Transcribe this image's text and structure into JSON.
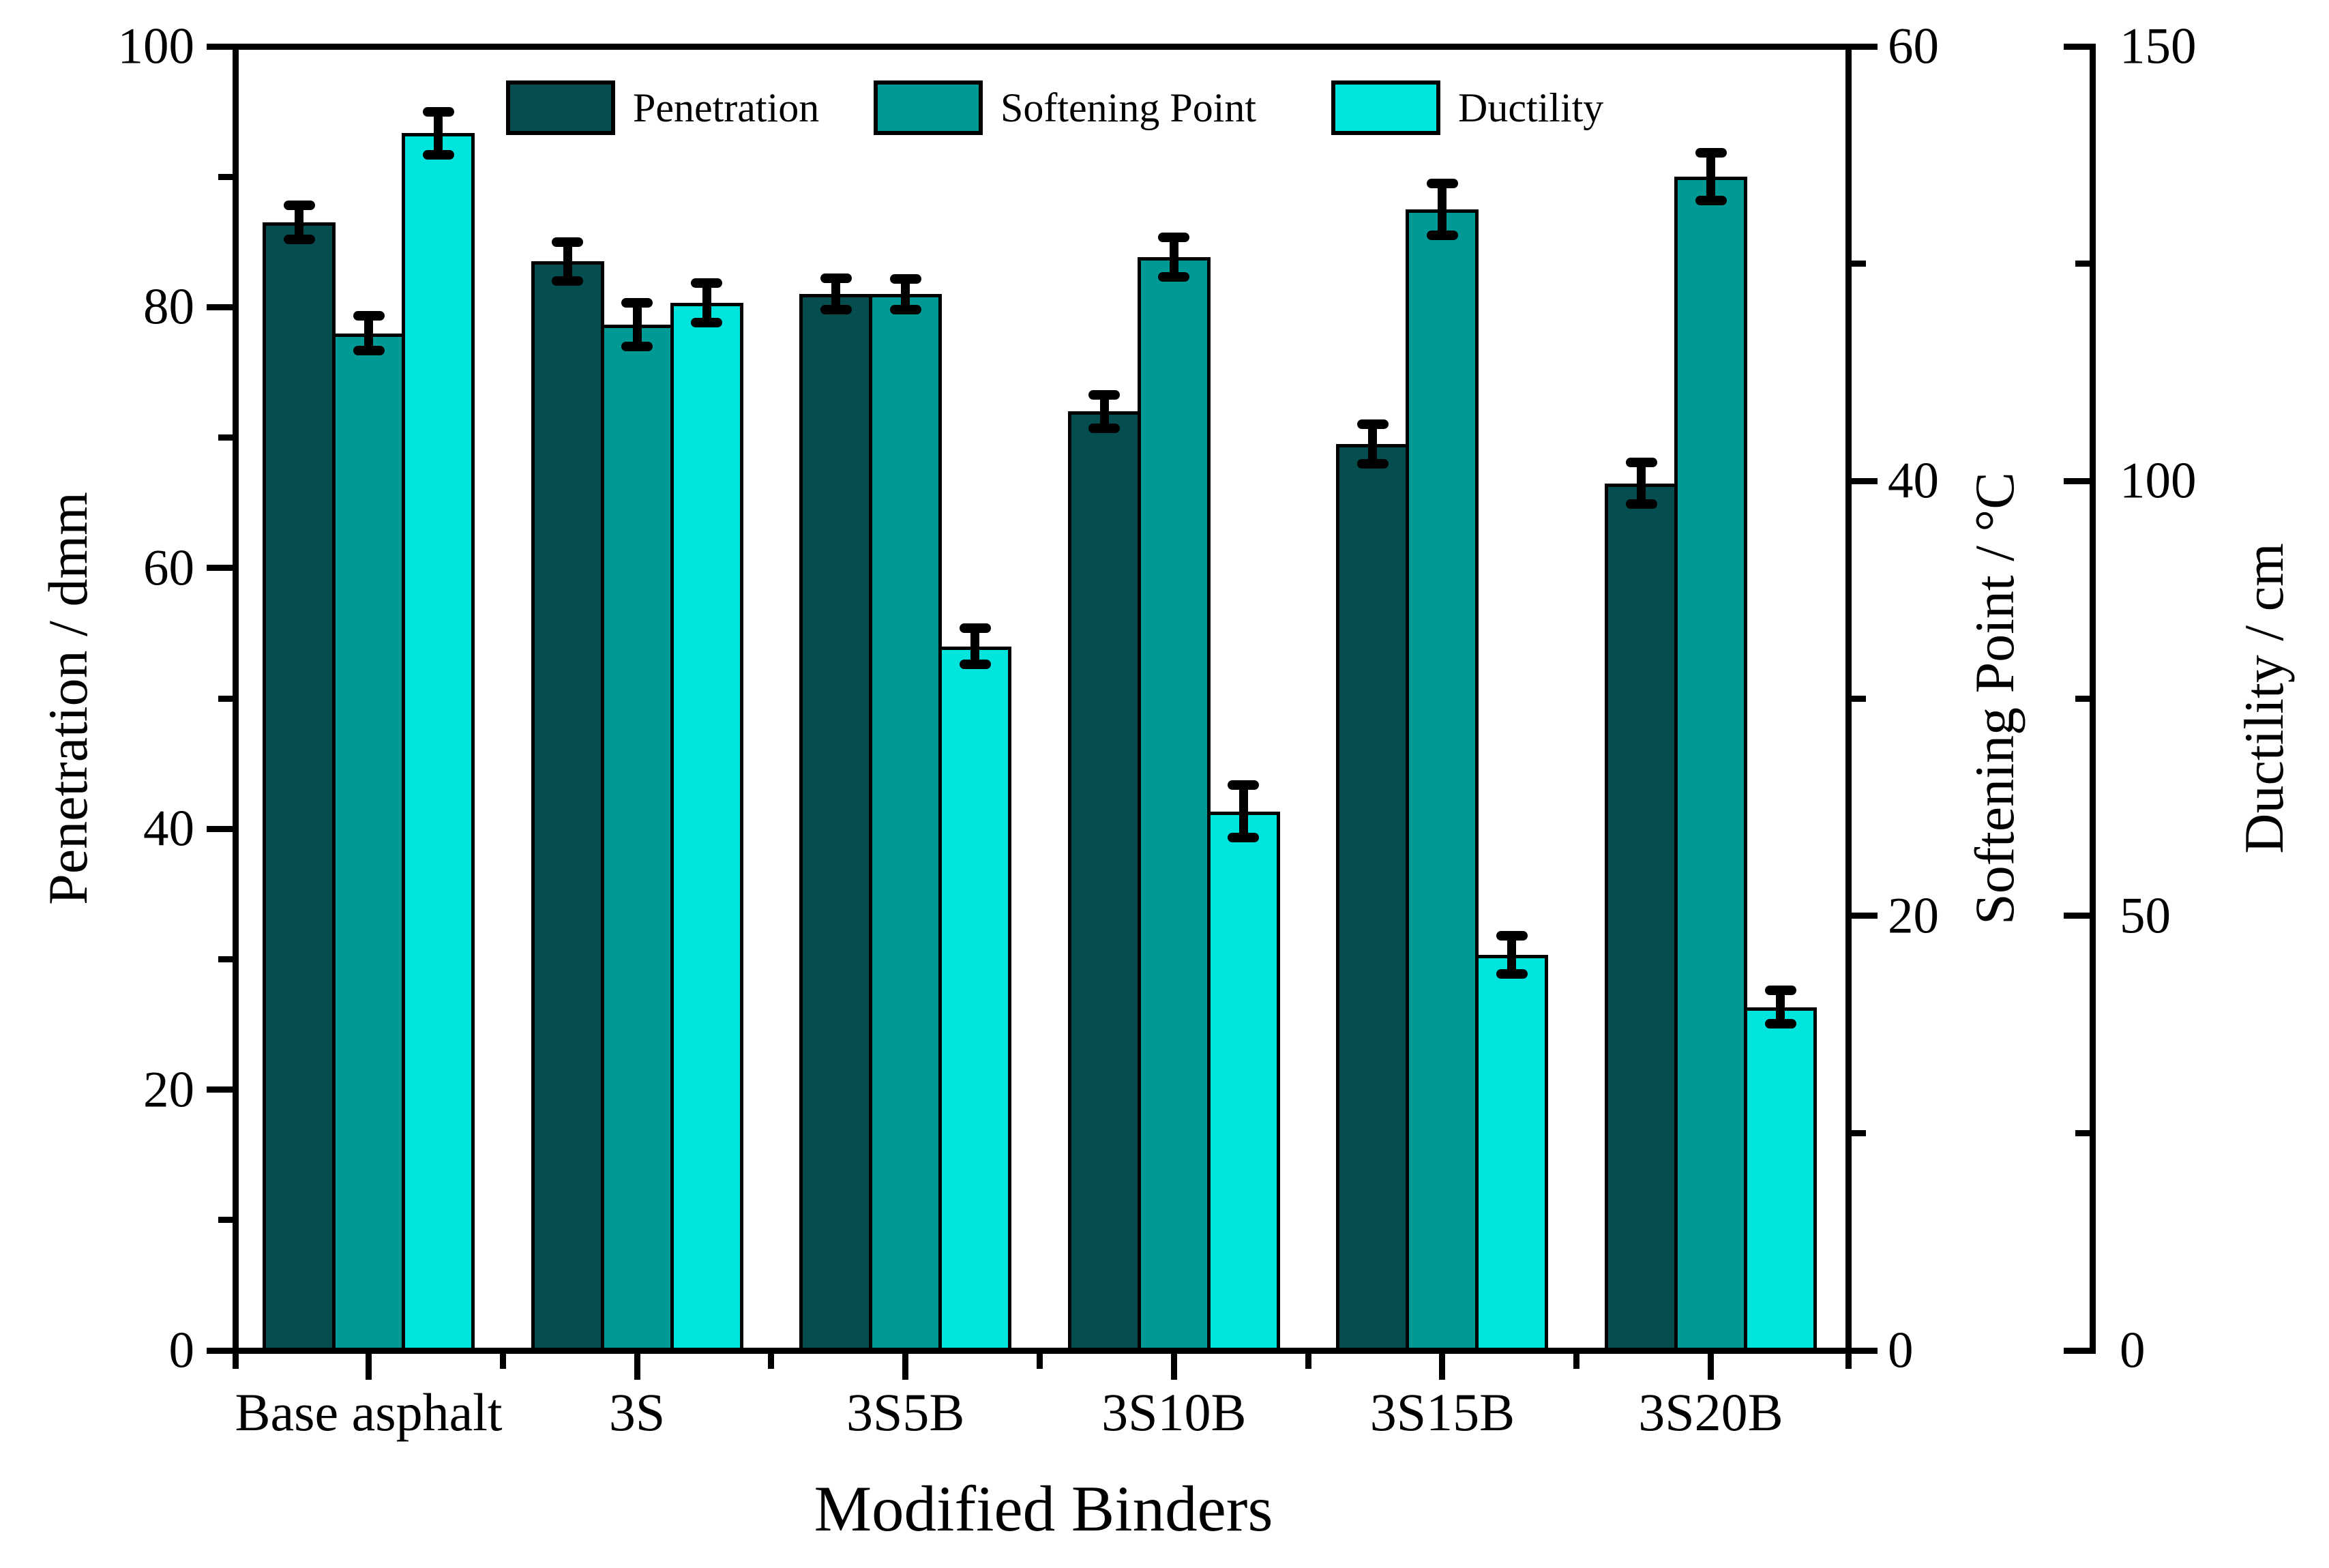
{
  "chart_data": {
    "type": "bar",
    "title": "",
    "xlabel": "Modified Binders",
    "categories": [
      "Base asphalt",
      "3S",
      "3S5B",
      "3S10B",
      "3S15B",
      "3S20B"
    ],
    "series": [
      {
        "name": "Penetration",
        "axis": "left",
        "color": "#054d4e",
        "values": [
          86.5,
          83.5,
          81.0,
          72.0,
          69.5,
          66.5
        ],
        "errors": [
          1.3,
          1.5,
          1.2,
          1.3,
          1.5,
          1.6
        ]
      },
      {
        "name": "Softening Point",
        "axis": "right1",
        "color": "#009a96",
        "values": [
          46.8,
          47.2,
          48.6,
          50.3,
          52.5,
          54.0
        ],
        "errors": [
          0.8,
          1.0,
          0.7,
          0.9,
          1.2,
          1.1
        ]
      },
      {
        "name": "Ductility",
        "axis": "right2",
        "color": "#00e4de",
        "values": [
          140.0,
          120.5,
          81.0,
          62.0,
          45.5,
          39.5
        ],
        "errors": [
          2.5,
          2.3,
          2.1,
          3.0,
          2.2,
          1.9
        ]
      }
    ],
    "axes": {
      "left": {
        "title": "Penetration / dmm",
        "min": 0,
        "max": 100,
        "major_ticks": [
          0,
          20,
          40,
          60,
          80,
          100
        ],
        "minor_step": 10
      },
      "right1": {
        "title": "Softening Point / °C",
        "min": 0,
        "max": 60,
        "major_ticks": [
          0,
          20,
          40,
          60
        ],
        "minor_step": 10
      },
      "right2": {
        "title": "Ductility / cm",
        "min": 0,
        "max": 150,
        "major_ticks": [
          0,
          50,
          100,
          150
        ],
        "minor_step": 25
      }
    },
    "legend": [
      "Penetration",
      "Softening Point",
      "Ductility"
    ],
    "grid": false,
    "legend_position": "top-center"
  }
}
